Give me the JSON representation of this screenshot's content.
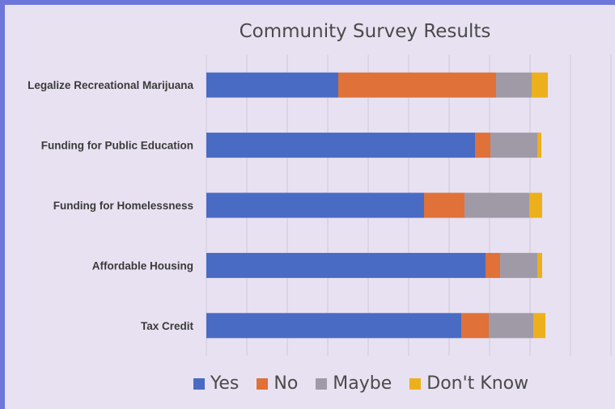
{
  "chart_data": {
    "type": "bar",
    "orientation": "horizontal",
    "stacked": true,
    "title": "Community Survey Results",
    "categories": [
      "Legalize Recreational Marijuana",
      "Funding for Public Education",
      "Funding for Homelessness",
      "Affordable Housing",
      "Tax Credit"
    ],
    "series": [
      {
        "name": "Yes",
        "color": "#4a6bc4",
        "values": [
          163,
          332,
          269,
          345,
          315
        ]
      },
      {
        "name": "No",
        "color": "#df7139",
        "values": [
          195,
          19,
          50,
          18,
          34
        ]
      },
      {
        "name": "Maybe",
        "color": "#a09aa7",
        "values": [
          44,
          58,
          80,
          46,
          55
        ]
      },
      {
        "name": "Don't Know",
        "color": "#ecb01c",
        "values": [
          20,
          5,
          16,
          6,
          15
        ]
      }
    ],
    "xlim": [
      0,
      500
    ],
    "grid": true,
    "legend_position": "bottom"
  }
}
